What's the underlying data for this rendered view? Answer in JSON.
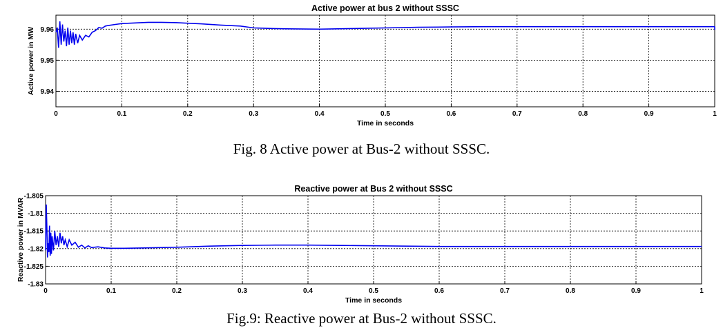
{
  "figure8": {
    "caption": "Fig. 8 Active power at Bus-2 without SSSC.",
    "chart_data": {
      "type": "line",
      "title": "Active power at bus 2 without SSSC",
      "xlabel": "Time in seconds",
      "ylabel": "Active power in MW",
      "xlim": [
        0,
        1
      ],
      "ylim": [
        9.935,
        9.9645
      ],
      "x_ticks": [
        "0",
        "0.1",
        "0.2",
        "0.3",
        "0.4",
        "0.5",
        "0.6",
        "0.7",
        "0.8",
        "0.9",
        "1"
      ],
      "y_ticks": [
        "9.94",
        "9.95",
        "9.96"
      ],
      "grid": true,
      "line_color": "#0000ee",
      "series": [
        {
          "x": [
            0,
            0.002,
            0.004,
            0.006,
            0.008,
            0.01,
            0.012,
            0.014,
            0.016,
            0.018,
            0.02,
            0.022,
            0.024,
            0.026,
            0.028,
            0.03,
            0.033,
            0.036,
            0.04,
            0.045,
            0.05,
            0.055,
            0.06,
            0.065,
            0.07,
            0.075,
            0.08,
            0.09,
            0.1,
            0.12,
            0.14,
            0.16,
            0.18,
            0.2,
            0.22,
            0.25,
            0.28,
            0.3,
            0.33,
            0.35,
            0.4,
            0.45,
            0.5,
            0.55,
            0.6,
            0.65,
            0.7,
            0.75,
            0.8,
            0.85,
            0.9,
            0.95,
            1.0
          ],
          "y": [
            9.959,
            9.9605,
            9.954,
            9.9625,
            9.955,
            9.9615,
            9.956,
            9.9595,
            9.9545,
            9.9605,
            9.955,
            9.9595,
            9.9555,
            9.959,
            9.955,
            9.9585,
            9.9555,
            9.958,
            9.9565,
            9.958,
            9.9575,
            9.959,
            9.9595,
            9.9605,
            9.9603,
            9.961,
            9.9612,
            9.9615,
            9.9618,
            9.962,
            9.9622,
            9.9622,
            9.9621,
            9.9619,
            9.9617,
            9.9613,
            9.961,
            9.9604,
            9.9602,
            9.9601,
            9.96,
            9.9602,
            9.9604,
            9.9606,
            9.9607,
            9.9608,
            9.9608,
            9.9608,
            9.9608,
            9.9608,
            9.9608,
            9.9608,
            9.9608
          ]
        },
        {
          "x": [
            1.0,
            1.0
          ],
          "y": [
            9.9608,
            9.9598
          ]
        }
      ]
    }
  },
  "figure9": {
    "caption": "Fig.9: Reactive power at Bus-2 without SSSC.",
    "chart_data": {
      "type": "line",
      "title": "Reactive power at Bus 2 without SSSC",
      "xlabel": "Time in seconds",
      "ylabel": "Reactive power in MVAR",
      "xlim": [
        0,
        1
      ],
      "ylim": [
        -1.83,
        -1.805
      ],
      "x_ticks": [
        "0",
        "0.1",
        "0.2",
        "0.3",
        "0.4",
        "0.5",
        "0.6",
        "0.7",
        "0.8",
        "0.9",
        "1"
      ],
      "y_ticks": [
        "-1.805",
        "-1.81",
        "-1.815",
        "-1.82",
        "-1.825",
        "-1.83"
      ],
      "grid": true,
      "line_color": "#0000ee",
      "series": [
        {
          "x": [
            0,
            0.001,
            0.002,
            0.003,
            0.004,
            0.005,
            0.006,
            0.007,
            0.008,
            0.009,
            0.01,
            0.012,
            0.014,
            0.016,
            0.018,
            0.02,
            0.022,
            0.024,
            0.026,
            0.028,
            0.03,
            0.033,
            0.036,
            0.04,
            0.045,
            0.05,
            0.055,
            0.06,
            0.065,
            0.07,
            0.08,
            0.09,
            0.1,
            0.12,
            0.15,
            0.2,
            0.25,
            0.3,
            0.35,
            0.4,
            0.45,
            0.5,
            0.55,
            0.6,
            0.7,
            0.8,
            0.9,
            1.0
          ],
          "y": [
            -1.8205,
            -1.8075,
            -1.814,
            -1.8225,
            -1.8185,
            -1.821,
            -1.8135,
            -1.822,
            -1.8155,
            -1.8215,
            -1.8165,
            -1.8205,
            -1.815,
            -1.819,
            -1.8165,
            -1.8195,
            -1.8155,
            -1.8185,
            -1.8165,
            -1.819,
            -1.8175,
            -1.8195,
            -1.8175,
            -1.819,
            -1.8182,
            -1.8196,
            -1.819,
            -1.8198,
            -1.8192,
            -1.8197,
            -1.8195,
            -1.8198,
            -1.8199,
            -1.8199,
            -1.8198,
            -1.8196,
            -1.8193,
            -1.8191,
            -1.819,
            -1.819,
            -1.8191,
            -1.8192,
            -1.8193,
            -1.8194,
            -1.8194,
            -1.8194,
            -1.8194,
            -1.8194
          ]
        }
      ]
    }
  }
}
